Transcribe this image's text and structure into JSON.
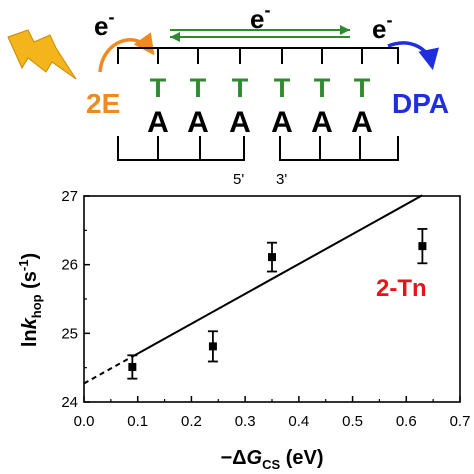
{
  "schematic": {
    "electron_left": "e",
    "electron_middle": "e",
    "electron_right": "e",
    "electron_charge": "-",
    "donor_label": "2E",
    "acceptor_label": "DPA",
    "top_strand": [
      "T",
      "T",
      "T",
      "T",
      "T",
      "T"
    ],
    "bottom_strand": [
      "A",
      "A",
      "A",
      "A",
      "A",
      "A"
    ],
    "end_label_left": "5'",
    "end_label_right": "3'",
    "colors": {
      "donor": "#f08a1e",
      "acceptor": "#1f2fe0",
      "thymine": "#2f8a2f",
      "adenine": "#000000",
      "arrow_green": "#2f8a2f",
      "flash": "#f3b51b"
    },
    "flash_icon": "lightning-bolt-icon"
  },
  "chart_data": {
    "type": "scatter",
    "title": "",
    "xlabel": {
      "prefix": "−Δ",
      "main": "G",
      "sub": "CS",
      "unit": " (eV)"
    },
    "ylabel": {
      "prefix": "ln",
      "main": "k",
      "sub": "hop",
      "unit": " (s",
      "sup": "-1",
      "close": ")"
    },
    "xlim": [
      0.0,
      0.7
    ],
    "ylim": [
      24,
      27
    ],
    "xticks": [
      "0.0",
      "0.1",
      "0.2",
      "0.3",
      "0.4",
      "0.5",
      "0.6",
      "0.7"
    ],
    "yticks": [
      "24",
      "25",
      "26",
      "27"
    ],
    "points": [
      {
        "x": 0.09,
        "y": 24.51,
        "err": 0.17
      },
      {
        "x": 0.24,
        "y": 24.81,
        "err": 0.22
      },
      {
        "x": 0.35,
        "y": 26.11,
        "err": 0.21
      },
      {
        "x": 0.63,
        "y": 26.27,
        "err": 0.25
      }
    ],
    "fit": {
      "intercept": 24.27,
      "slope": 4.35,
      "dashed_range": [
        0.0,
        0.09
      ],
      "solid_range": [
        0.09,
        0.63
      ]
    },
    "annotation": "2-Tn",
    "annotation_color": "#e8141b",
    "grid": false
  }
}
